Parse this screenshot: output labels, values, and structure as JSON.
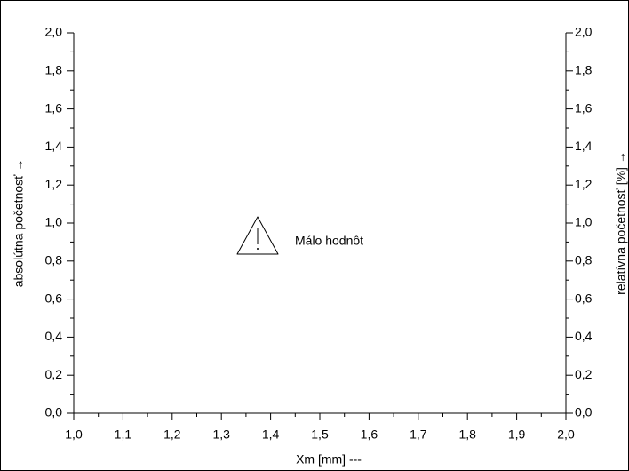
{
  "chart_data": {
    "type": "histogram",
    "annotation": "Málo hodnôt",
    "xlabel": "Xm [mm]  ---",
    "ylabel": "absolútna početnosť →",
    "y2label": "relatívna početnosť  [%] →",
    "xlim": [
      1.0,
      2.0
    ],
    "xticks": [
      {
        "value": 1.0,
        "label": "1,0"
      },
      {
        "value": 1.1,
        "label": "1,1"
      },
      {
        "value": 1.2,
        "label": "1,2"
      },
      {
        "value": 1.3,
        "label": "1,3"
      },
      {
        "value": 1.4,
        "label": "1,4"
      },
      {
        "value": 1.5,
        "label": "1,5"
      },
      {
        "value": 1.6,
        "label": "1,6"
      },
      {
        "value": 1.7,
        "label": "1,7"
      },
      {
        "value": 1.8,
        "label": "1,8"
      },
      {
        "value": 1.9,
        "label": "1,9"
      },
      {
        "value": 2.0,
        "label": "2,0"
      }
    ],
    "ylim": [
      0.0,
      2.0
    ],
    "yticks": [
      {
        "value": 0.0,
        "label": "0,0"
      },
      {
        "value": 0.2,
        "label": "0,2"
      },
      {
        "value": 0.4,
        "label": "0,4"
      },
      {
        "value": 0.6,
        "label": "0,6"
      },
      {
        "value": 0.8,
        "label": "0,8"
      },
      {
        "value": 1.0,
        "label": "1,0"
      },
      {
        "value": 1.2,
        "label": "1,2"
      },
      {
        "value": 1.4,
        "label": "1,4"
      },
      {
        "value": 1.6,
        "label": "1,6"
      },
      {
        "value": 1.8,
        "label": "1,8"
      },
      {
        "value": 2.0,
        "label": "2,0"
      }
    ],
    "y2lim": [
      0.0,
      2.0
    ],
    "y2ticks": [
      {
        "value": 0.0,
        "label": "0,0"
      },
      {
        "value": 0.2,
        "label": "0,2"
      },
      {
        "value": 0.4,
        "label": "0,4"
      },
      {
        "value": 0.6,
        "label": "0,6"
      },
      {
        "value": 0.8,
        "label": "0,8"
      },
      {
        "value": 1.0,
        "label": "1,0"
      },
      {
        "value": 1.2,
        "label": "1,2"
      },
      {
        "value": 1.4,
        "label": "1,4"
      },
      {
        "value": 1.6,
        "label": "1,6"
      },
      {
        "value": 1.8,
        "label": "1,8"
      },
      {
        "value": 2.0,
        "label": "2,0"
      }
    ],
    "bins": [],
    "counts": []
  }
}
